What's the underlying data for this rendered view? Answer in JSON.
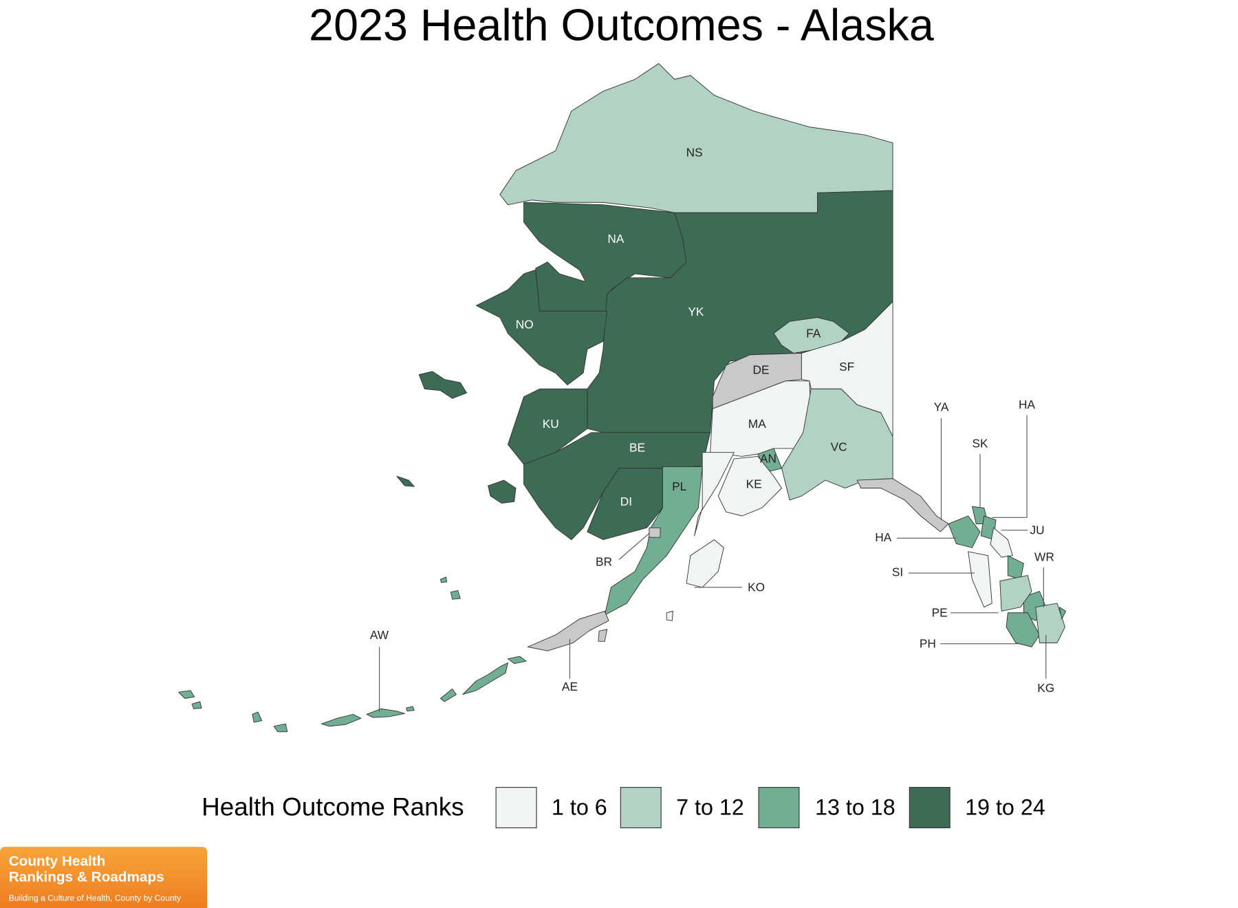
{
  "title": "2023 Health Outcomes - Alaska",
  "legend": {
    "title": "Health Outcome Ranks",
    "items": [
      {
        "label": "1 to 6",
        "color": "#f0f5f3"
      },
      {
        "label": "7 to 12",
        "color": "#b2d3c4"
      },
      {
        "label": "13 to 18",
        "color": "#72ae93"
      },
      {
        "label": "19 to 24",
        "color": "#3d6b56"
      }
    ]
  },
  "regions": [
    {
      "label": "NS",
      "color": "#b2d3c4"
    },
    {
      "label": "NA",
      "color": "#3d6b56"
    },
    {
      "label": "YK",
      "color": "#3d6b56"
    },
    {
      "label": "NO",
      "color": "#3d6b56"
    },
    {
      "label": "KU",
      "color": "#3d6b56"
    },
    {
      "label": "BE",
      "color": "#3d6b56"
    },
    {
      "label": "DI",
      "color": "#3d6b56"
    },
    {
      "label": "FA",
      "color": "#b2d3c4"
    },
    {
      "label": "DE",
      "color": "#c9c9c9"
    },
    {
      "label": "SF",
      "color": "#f0f5f3"
    },
    {
      "label": "MA",
      "color": "#f0f5f3"
    },
    {
      "label": "VC",
      "color": "#b2d3c4"
    },
    {
      "label": "AN",
      "color": "#72ae93"
    },
    {
      "label": "KE",
      "color": "#f0f5f3"
    },
    {
      "label": "PL",
      "color": "#72ae93"
    },
    {
      "label": "BR",
      "color": "#c9c9c9"
    },
    {
      "label": "KO",
      "color": "#f0f5f3"
    },
    {
      "label": "AW",
      "color": "#72ae93"
    },
    {
      "label": "AE",
      "color": "#c9c9c9"
    },
    {
      "label": "YA",
      "color": "#c9c9c9"
    },
    {
      "label": "SK",
      "color": "#72ae93"
    },
    {
      "label": "HA",
      "color": "#72ae93"
    },
    {
      "label": "JU",
      "color": "#f0f5f3"
    },
    {
      "label": "HA",
      "color": "#72ae93"
    },
    {
      "label": "SI",
      "color": "#f0f5f3"
    },
    {
      "label": "WR",
      "color": "#72ae93"
    },
    {
      "label": "PE",
      "color": "#b2d3c4"
    },
    {
      "label": "PH",
      "color": "#72ae93"
    },
    {
      "label": "KG",
      "color": "#b2d3c4"
    }
  ],
  "logo": {
    "line1": "County Health",
    "line2": "Rankings & Roadmaps",
    "tagline": "Building a Culture of Health, County by County"
  }
}
